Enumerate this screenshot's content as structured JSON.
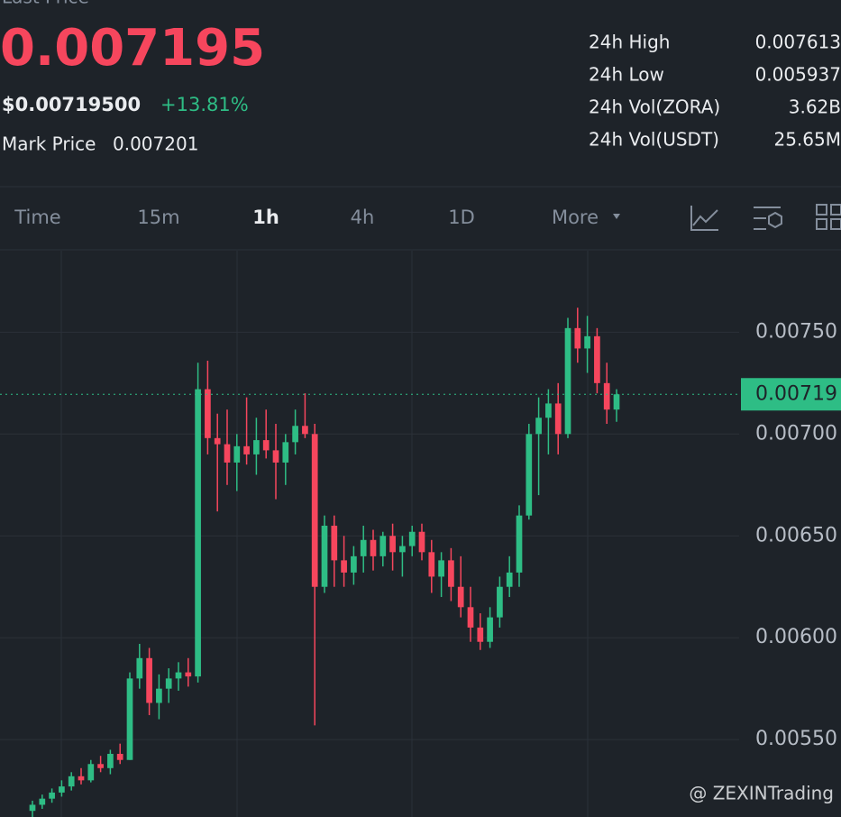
{
  "header": {
    "label": "Last Price",
    "price": "0.007195",
    "usd_price": "$0.00719500",
    "change": "+13.81%",
    "mark_label": "Mark Price",
    "mark_price": "0.007201",
    "stats": [
      [
        "24h High",
        "0.007613"
      ],
      [
        "24h Low",
        "0.005937"
      ],
      [
        "24h Vol(ZORA)",
        "3.62B"
      ],
      [
        "24h Vol(USDT)",
        "25.65M"
      ]
    ]
  },
  "tabs": [
    "Time",
    "15m",
    "1h",
    "4h",
    "1D",
    "More"
  ],
  "watermark": "@ ZEXINTrading",
  "chart_data": {
    "type": "candlestick",
    "ylim": [
      0.00512,
      0.0079
    ],
    "yticks": [
      {
        "value": 0.0055,
        "label": "0.00550"
      },
      {
        "value": 0.006,
        "label": "0.00600"
      },
      {
        "value": 0.0065,
        "label": "0.00650"
      },
      {
        "value": 0.007,
        "label": "0.00700"
      },
      {
        "value": 0.0075,
        "label": "0.00750"
      }
    ],
    "grid": true,
    "up_color": "#2ebd85",
    "down_color": "#f6465d",
    "last_price": {
      "value": 0.007195,
      "label": "0.00719"
    },
    "candles": [
      [
        0.00515,
        0.0052,
        0.00512,
        0.00518
      ],
      [
        0.00518,
        0.00523,
        0.00516,
        0.00521
      ],
      [
        0.00521,
        0.00526,
        0.00519,
        0.00524
      ],
      [
        0.00524,
        0.0053,
        0.00522,
        0.00527
      ],
      [
        0.00527,
        0.00534,
        0.00525,
        0.00532
      ],
      [
        0.00532,
        0.00536,
        0.00528,
        0.0053
      ],
      [
        0.0053,
        0.0054,
        0.00529,
        0.00538
      ],
      [
        0.00538,
        0.00542,
        0.00534,
        0.00536
      ],
      [
        0.00536,
        0.00545,
        0.00533,
        0.00543
      ],
      [
        0.00543,
        0.00548,
        0.00538,
        0.0054
      ],
      [
        0.0054,
        0.00583,
        0.0054,
        0.0058
      ],
      [
        0.0058,
        0.00597,
        0.00575,
        0.0059
      ],
      [
        0.0059,
        0.00595,
        0.00562,
        0.00568
      ],
      [
        0.00568,
        0.00582,
        0.0056,
        0.00575
      ],
      [
        0.00575,
        0.00585,
        0.00568,
        0.0058
      ],
      [
        0.0058,
        0.00588,
        0.00574,
        0.00583
      ],
      [
        0.00583,
        0.0059,
        0.00576,
        0.00581
      ],
      [
        0.00581,
        0.00735,
        0.00578,
        0.00722
      ],
      [
        0.00722,
        0.00736,
        0.0069,
        0.00698
      ],
      [
        0.00698,
        0.0071,
        0.00662,
        0.00695
      ],
      [
        0.00695,
        0.00712,
        0.00675,
        0.00686
      ],
      [
        0.00686,
        0.007,
        0.00672,
        0.00694
      ],
      [
        0.00694,
        0.00718,
        0.00685,
        0.0069
      ],
      [
        0.0069,
        0.00708,
        0.0068,
        0.00697
      ],
      [
        0.00697,
        0.00712,
        0.00688,
        0.00692
      ],
      [
        0.00692,
        0.00705,
        0.00668,
        0.00686
      ],
      [
        0.00686,
        0.007,
        0.00675,
        0.00696
      ],
      [
        0.00696,
        0.00712,
        0.0069,
        0.00704
      ],
      [
        0.00704,
        0.0072,
        0.00698,
        0.007
      ],
      [
        0.007,
        0.00705,
        0.00557,
        0.00625
      ],
      [
        0.00625,
        0.0066,
        0.00622,
        0.00655
      ],
      [
        0.00655,
        0.0066,
        0.00625,
        0.00638
      ],
      [
        0.00638,
        0.0065,
        0.00625,
        0.00632
      ],
      [
        0.00632,
        0.00645,
        0.00626,
        0.0064
      ],
      [
        0.0064,
        0.00655,
        0.00632,
        0.00648
      ],
      [
        0.00648,
        0.00653,
        0.00633,
        0.0064
      ],
      [
        0.0064,
        0.00652,
        0.00635,
        0.0065
      ],
      [
        0.0065,
        0.00656,
        0.00633,
        0.00642
      ],
      [
        0.00642,
        0.0065,
        0.0063,
        0.00645
      ],
      [
        0.00645,
        0.00655,
        0.0064,
        0.00652
      ],
      [
        0.00652,
        0.00656,
        0.00638,
        0.00642
      ],
      [
        0.00642,
        0.00648,
        0.00622,
        0.0063
      ],
      [
        0.0063,
        0.00642,
        0.0062,
        0.00638
      ],
      [
        0.00638,
        0.00644,
        0.00618,
        0.00625
      ],
      [
        0.00625,
        0.0064,
        0.0061,
        0.00615
      ],
      [
        0.00615,
        0.00625,
        0.00598,
        0.00605
      ],
      [
        0.00605,
        0.00612,
        0.00594,
        0.00598
      ],
      [
        0.00598,
        0.00615,
        0.00595,
        0.0061
      ],
      [
        0.0061,
        0.0063,
        0.00605,
        0.00625
      ],
      [
        0.00625,
        0.0064,
        0.0062,
        0.00632
      ],
      [
        0.00632,
        0.00665,
        0.00625,
        0.0066
      ],
      [
        0.0066,
        0.00705,
        0.00658,
        0.007
      ],
      [
        0.007,
        0.00718,
        0.0067,
        0.00708
      ],
      [
        0.00708,
        0.00722,
        0.0069,
        0.00715
      ],
      [
        0.00715,
        0.00725,
        0.0069,
        0.007
      ],
      [
        0.007,
        0.00757,
        0.00698,
        0.00752
      ],
      [
        0.00752,
        0.00762,
        0.00735,
        0.00742
      ],
      [
        0.00742,
        0.00758,
        0.0073,
        0.00748
      ],
      [
        0.00748,
        0.00752,
        0.0072,
        0.00725
      ],
      [
        0.00725,
        0.00735,
        0.00705,
        0.00712
      ],
      [
        0.00712,
        0.00722,
        0.00706,
        0.007195
      ]
    ]
  }
}
